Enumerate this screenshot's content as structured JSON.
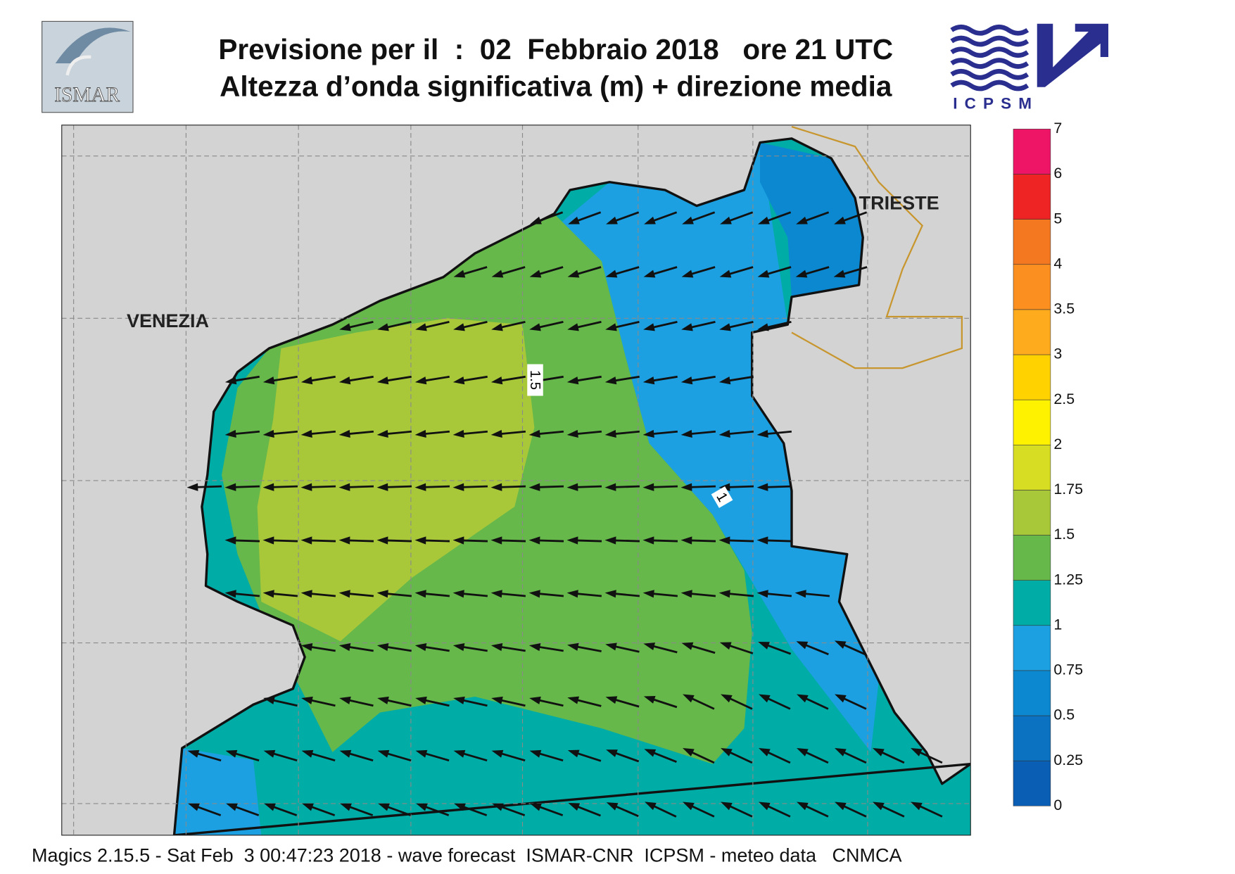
{
  "header": {
    "title": "Previsione per il  :  02  Febbraio 2018   ore 21 UTC",
    "subtitle": "Altezza d’onda significativa (m) + direzione media"
  },
  "logos": {
    "left": "ISMAR",
    "right": "ICPSM"
  },
  "map": {
    "places": [
      "VENEZIA",
      "TRIESTE"
    ],
    "contour_labels": [
      "1.5",
      "1"
    ]
  },
  "legend": {
    "levels": [
      0,
      0.25,
      0.5,
      0.75,
      1,
      1.25,
      1.5,
      1.75,
      2,
      2.5,
      3,
      3.5,
      4,
      5,
      6,
      7
    ],
    "colors": [
      "#0a5fb4",
      "#0b72c2",
      "#0b88d0",
      "#1ca0e2",
      "#00aca6",
      "#66b84a",
      "#a8c83a",
      "#d6dd22",
      "#fff200",
      "#ffd200",
      "#ffab1e",
      "#fb9020",
      "#f47820",
      "#ee2424",
      "#ee1466"
    ]
  },
  "footer": "Magics 2.15.5 - Sat Feb  3 00:47:23 2018 - wave forecast  ISMAR-CNR  ICPSM - meteo data   CNMCA"
}
